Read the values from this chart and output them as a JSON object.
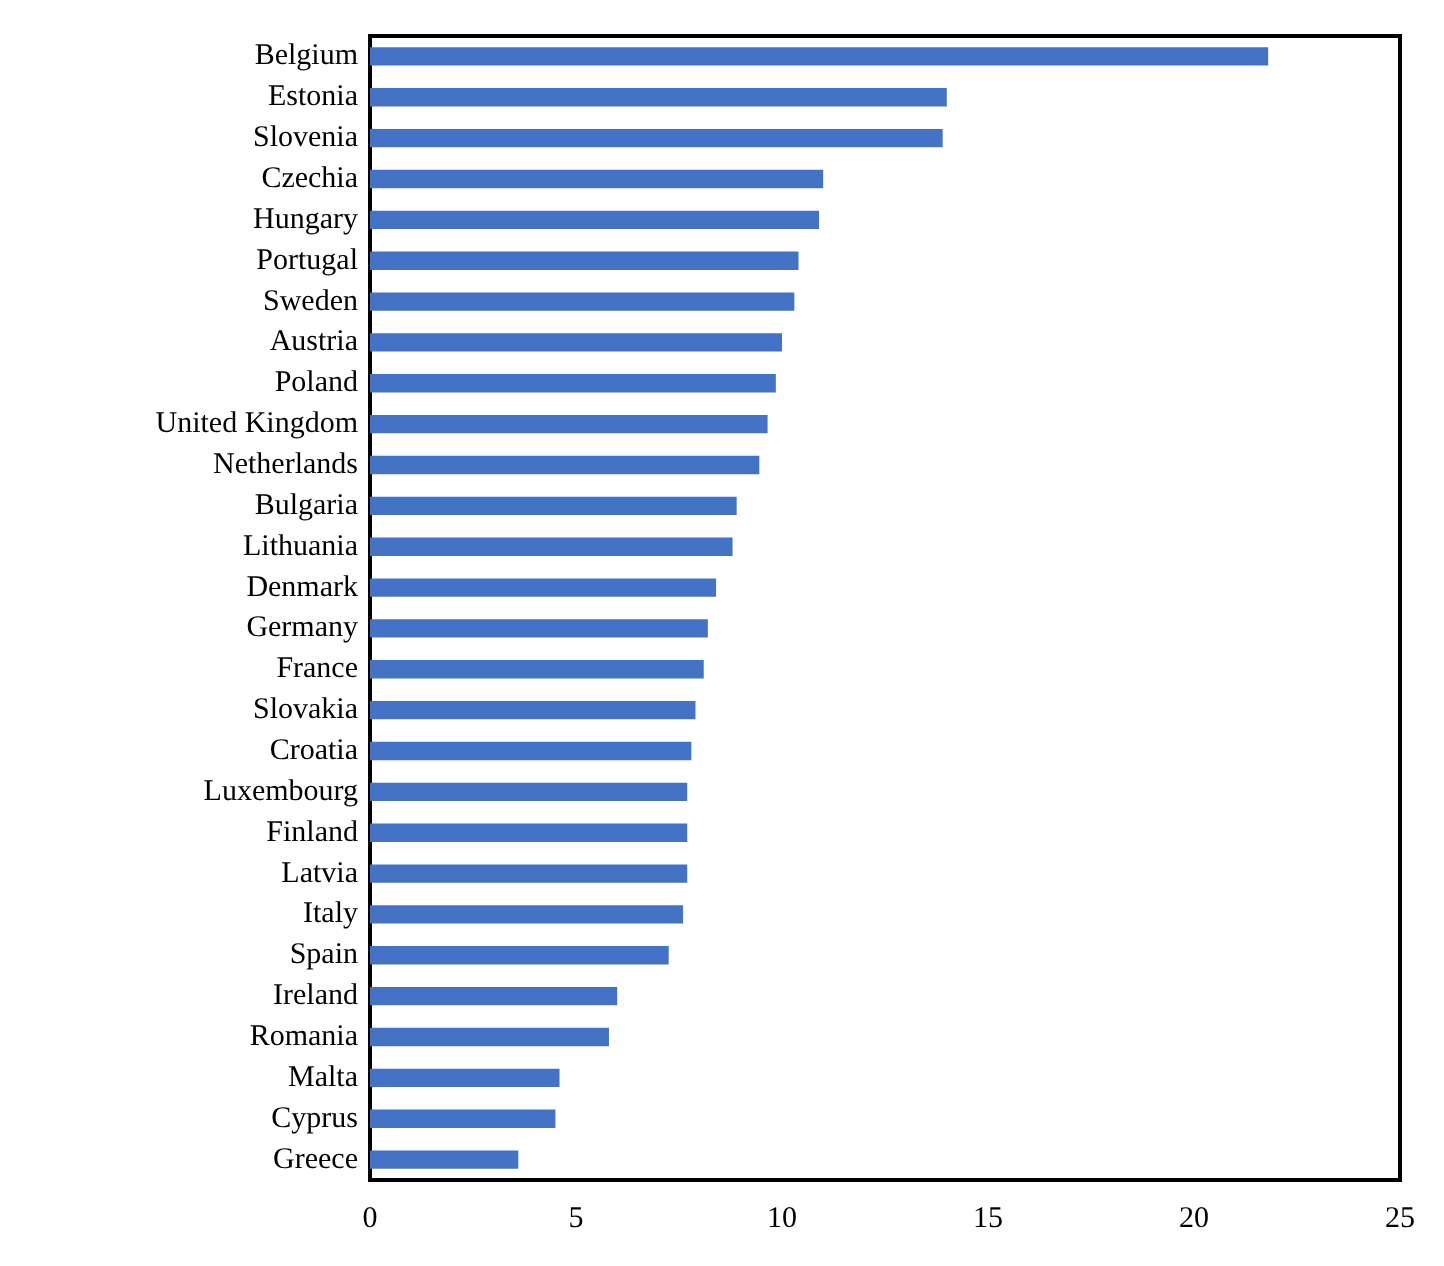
{
  "chart_data": {
    "type": "bar",
    "orientation": "horizontal",
    "categories": [
      "Belgium",
      "Estonia",
      "Slovenia",
      "Czechia",
      "Hungary",
      "Portugal",
      "Sweden",
      "Austria",
      "Poland",
      "United Kingdom",
      "Netherlands",
      "Bulgaria",
      "Lithuania",
      "Denmark",
      "Germany",
      "France",
      "Slovakia",
      "Croatia",
      "Luxembourg",
      "Finland",
      "Latvia",
      "Italy",
      "Spain",
      "Ireland",
      "Romania",
      "Malta",
      "Cyprus",
      "Greece"
    ],
    "values": [
      21.8,
      14.0,
      13.9,
      11.0,
      10.9,
      10.4,
      10.3,
      10.0,
      9.85,
      9.65,
      9.45,
      8.9,
      8.8,
      8.4,
      8.2,
      8.1,
      7.9,
      7.8,
      7.7,
      7.7,
      7.7,
      7.6,
      7.25,
      6.0,
      5.8,
      4.6,
      4.5,
      3.6
    ],
    "color": "#4472c4",
    "xlim": [
      0,
      25
    ],
    "xticks": [
      0,
      5,
      10,
      15,
      20,
      25
    ],
    "grid": false
  }
}
